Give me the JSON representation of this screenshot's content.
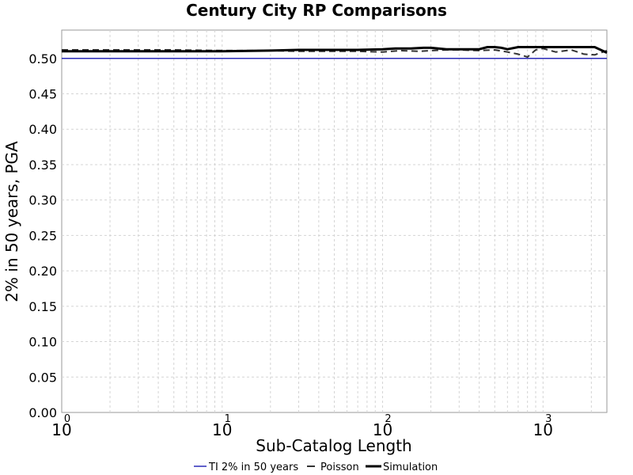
{
  "chart_data": {
    "type": "line",
    "title": "Century City RP Comparisons",
    "xlabel": "Sub-Catalog Length",
    "ylabel": "2% in 50 years, PGA",
    "x_scale": "log",
    "xlim": [
      1,
      2500
    ],
    "ylim": [
      0.0,
      0.54
    ],
    "x_ticks": [
      {
        "value": 1,
        "base": "10",
        "exp": "0"
      },
      {
        "value": 10,
        "base": "10",
        "exp": "1"
      },
      {
        "value": 100,
        "base": "10",
        "exp": "2"
      },
      {
        "value": 1000,
        "base": "10",
        "exp": "3"
      }
    ],
    "y_ticks": [
      "0.00",
      "0.05",
      "0.10",
      "0.15",
      "0.20",
      "0.25",
      "0.30",
      "0.35",
      "0.40",
      "0.45",
      "0.50"
    ],
    "grid": true,
    "legend_position": "bottom",
    "series": [
      {
        "name": "TI 2% in 50 years",
        "color": "#2b2bb8",
        "style": "solid",
        "x": [
          1,
          2500
        ],
        "y": [
          0.5,
          0.5
        ]
      },
      {
        "name": "Poisson",
        "color": "#333333",
        "style": "dashed",
        "x": [
          1,
          2,
          3,
          5,
          10,
          20,
          30,
          50,
          70,
          100,
          130,
          170,
          200,
          250,
          300,
          400,
          500,
          600,
          700,
          800,
          900,
          1000,
          1200,
          1500,
          1800,
          2100,
          2500
        ],
        "y": [
          0.512,
          0.512,
          0.512,
          0.512,
          0.511,
          0.511,
          0.51,
          0.51,
          0.51,
          0.509,
          0.511,
          0.51,
          0.511,
          0.512,
          0.512,
          0.511,
          0.512,
          0.509,
          0.506,
          0.502,
          0.512,
          0.514,
          0.509,
          0.512,
          0.506,
          0.505,
          0.511
        ]
      },
      {
        "name": "Simulation",
        "color": "#000000",
        "style": "solid",
        "x": [
          1,
          2,
          3,
          5,
          10,
          20,
          30,
          50,
          70,
          100,
          120,
          150,
          180,
          200,
          250,
          300,
          350,
          400,
          450,
          500,
          550,
          600,
          700,
          800,
          1000,
          1200,
          1500,
          1800,
          2100,
          2500
        ],
        "y": [
          0.51,
          0.51,
          0.51,
          0.51,
          0.51,
          0.511,
          0.512,
          0.512,
          0.512,
          0.513,
          0.514,
          0.514,
          0.515,
          0.515,
          0.513,
          0.513,
          0.513,
          0.513,
          0.516,
          0.516,
          0.515,
          0.513,
          0.516,
          0.516,
          0.516,
          0.516,
          0.516,
          0.516,
          0.516,
          0.508
        ]
      }
    ]
  }
}
